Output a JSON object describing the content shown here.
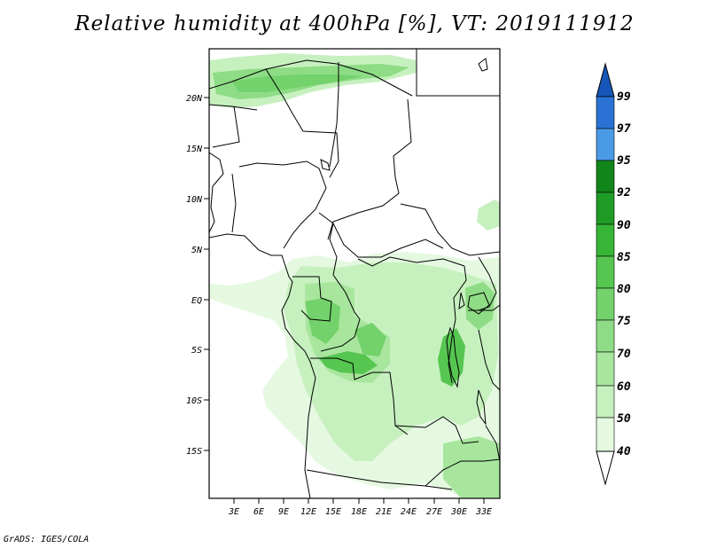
{
  "title": "Relative humidity at 400hPa [%], VT: 2019111912",
  "credit": "GrADS: IGES/COLA",
  "lat_ticks": [
    "20N",
    "15N",
    "10N",
    "5N",
    "EQ",
    "5S",
    "10S",
    "15S"
  ],
  "lon_ticks": [
    "3E",
    "6E",
    "9E",
    "12E",
    "15E",
    "18E",
    "21E",
    "24E",
    "27E",
    "30E",
    "33E"
  ],
  "colorbar": {
    "levels": [
      "40",
      "50",
      "60",
      "70",
      "75",
      "80",
      "85",
      "90",
      "92",
      "95",
      "97",
      "99"
    ],
    "colors": [
      "#ffffff",
      "#e5f9e1",
      "#c7f0bf",
      "#a8e69e",
      "#8edc85",
      "#73d26b",
      "#56c650",
      "#36b536",
      "#1f9c25",
      "#118519",
      "#4b9ae6",
      "#2a73d4",
      "#1656b8"
    ]
  },
  "map": {
    "projection": "lat-lon",
    "extent_lon": [
      0,
      34.5
    ],
    "extent_lat": [
      -19.5,
      24
    ],
    "field": "relative humidity at 400hPa",
    "units": "%"
  }
}
